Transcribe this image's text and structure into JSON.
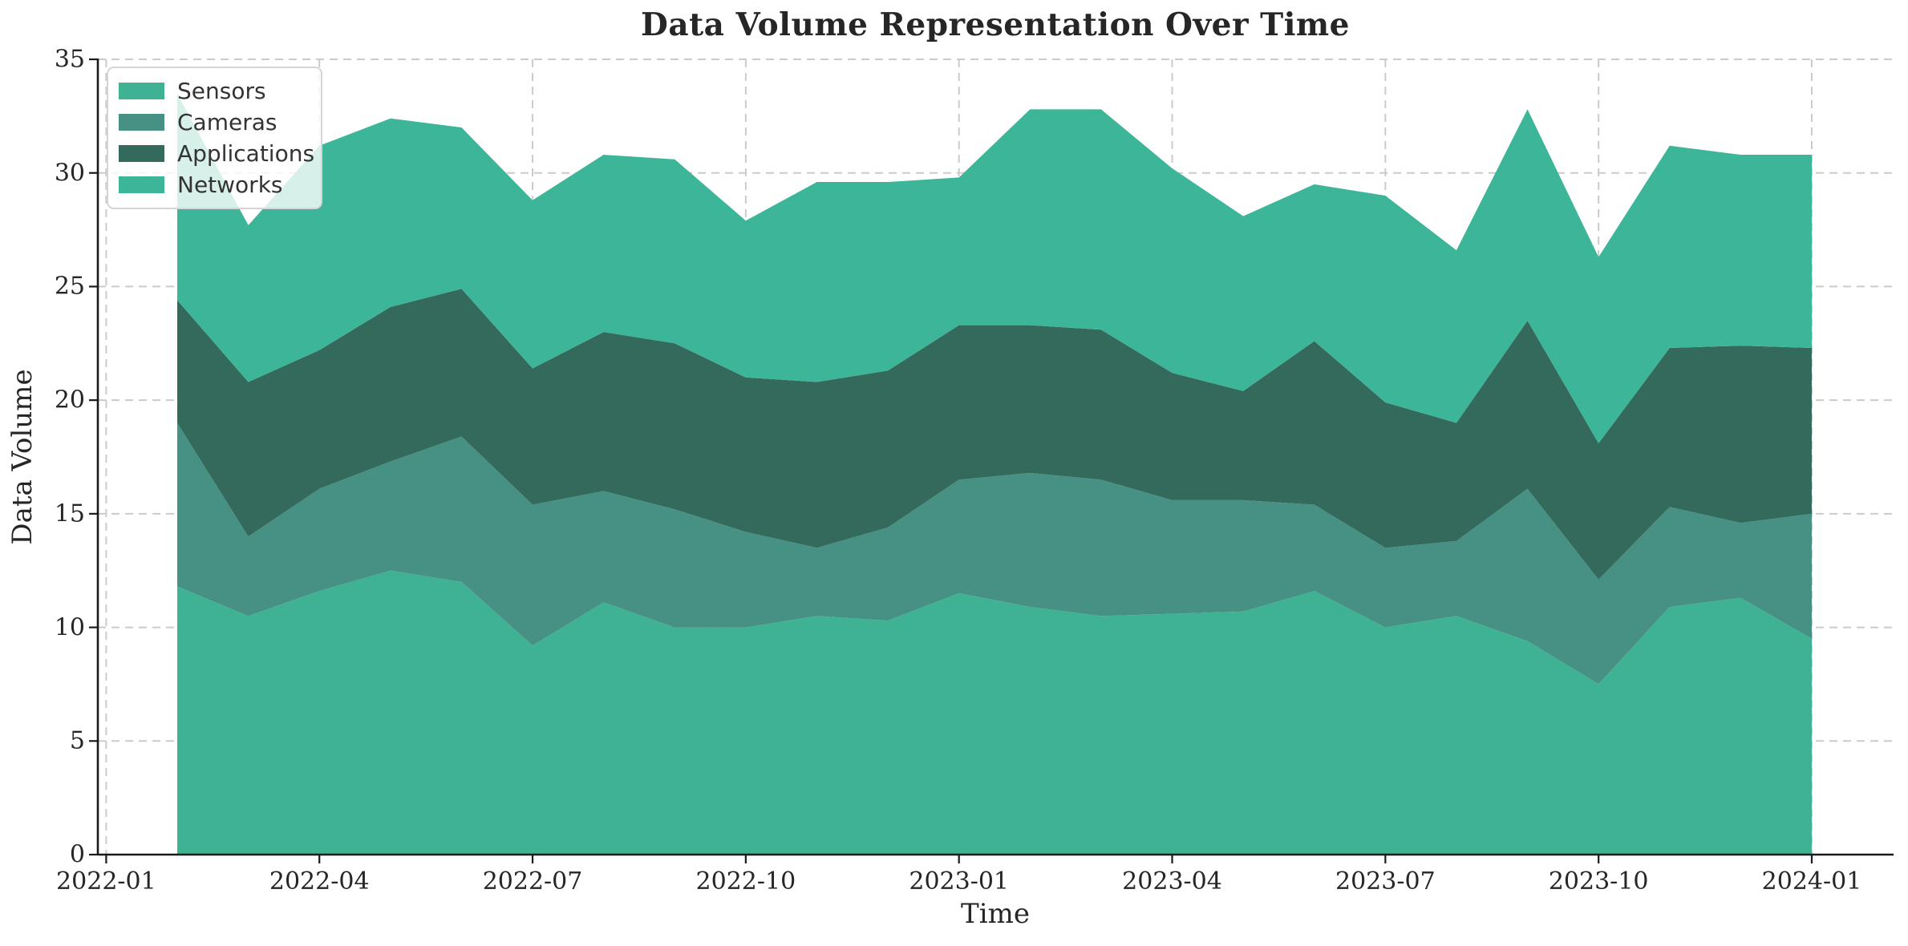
{
  "figure": {
    "title": "Data Volume Representation Over Time",
    "xlabel": "Time",
    "ylabel": "Data Volume"
  },
  "axes": {
    "x_tick_labels": [
      "2022-01",
      "2022-04",
      "2022-07",
      "2022-10",
      "2023-01",
      "2023-04",
      "2023-07",
      "2023-10",
      "2024-01"
    ],
    "y_tick_labels": [
      "0",
      "5",
      "10",
      "15",
      "20",
      "25",
      "30",
      "35"
    ],
    "grid_color": "#cbcbcb",
    "spine_color": "#1a1a1a",
    "text_color": "#262626"
  },
  "chart_data": {
    "type": "area",
    "stacked": true,
    "title": "Data Volume Representation Over Time",
    "xlabel": "Time",
    "ylabel": "Data Volume",
    "ylim": [
      0,
      35
    ],
    "grid": "dashed, both axes, drawn under data",
    "legend_position": "upper-left",
    "x": [
      "2022-02",
      "2022-03",
      "2022-04",
      "2022-05",
      "2022-06",
      "2022-07",
      "2022-08",
      "2022-09",
      "2022-10",
      "2022-11",
      "2022-12",
      "2023-01",
      "2023-02",
      "2023-03",
      "2023-04",
      "2023-05",
      "2023-06",
      "2023-07",
      "2023-08",
      "2023-09",
      "2023-10",
      "2023-11",
      "2023-12",
      "2024-01"
    ],
    "series": [
      {
        "name": "Sensors",
        "color": "#3FB294",
        "values": [
          11.8,
          10.5,
          11.6,
          12.5,
          12.0,
          9.2,
          11.1,
          10.0,
          10.0,
          10.5,
          10.3,
          11.5,
          10.9,
          10.5,
          10.6,
          10.7,
          11.6,
          10.0,
          10.5,
          9.4,
          7.5,
          10.9,
          11.3,
          9.5
        ]
      },
      {
        "name": "Cameras",
        "color": "#469184",
        "values": [
          7.2,
          3.5,
          4.5,
          4.8,
          6.4,
          6.2,
          4.9,
          5.2,
          4.2,
          3.0,
          4.1,
          5.0,
          5.9,
          6.0,
          5.0,
          4.9,
          3.8,
          3.5,
          3.3,
          6.7,
          4.6,
          4.4,
          3.3,
          5.5
        ]
      },
      {
        "name": "Applications",
        "color": "#336A5C",
        "values": [
          5.4,
          6.8,
          6.1,
          6.8,
          6.5,
          6.0,
          7.0,
          7.3,
          6.8,
          7.3,
          6.9,
          6.8,
          6.5,
          6.6,
          5.6,
          4.8,
          7.2,
          6.4,
          5.2,
          7.4,
          6.0,
          7.0,
          7.8,
          7.3
        ]
      },
      {
        "name": "Networks",
        "color": "#3DB598",
        "values": [
          9.1,
          6.9,
          9.0,
          8.3,
          7.1,
          7.4,
          7.8,
          8.1,
          6.9,
          8.8,
          8.3,
          6.5,
          9.5,
          9.7,
          9.0,
          7.7,
          6.9,
          9.1,
          7.6,
          9.3,
          8.2,
          8.9,
          8.4,
          8.5
        ]
      }
    ],
    "stacked_totals": [
      33.5,
      27.7,
      31.2,
      32.4,
      32.0,
      28.8,
      30.8,
      30.6,
      27.9,
      29.6,
      29.6,
      29.8,
      32.8,
      32.8,
      30.2,
      28.1,
      29.5,
      29.0,
      26.6,
      32.8,
      26.3,
      31.2,
      30.8,
      30.8
    ]
  }
}
